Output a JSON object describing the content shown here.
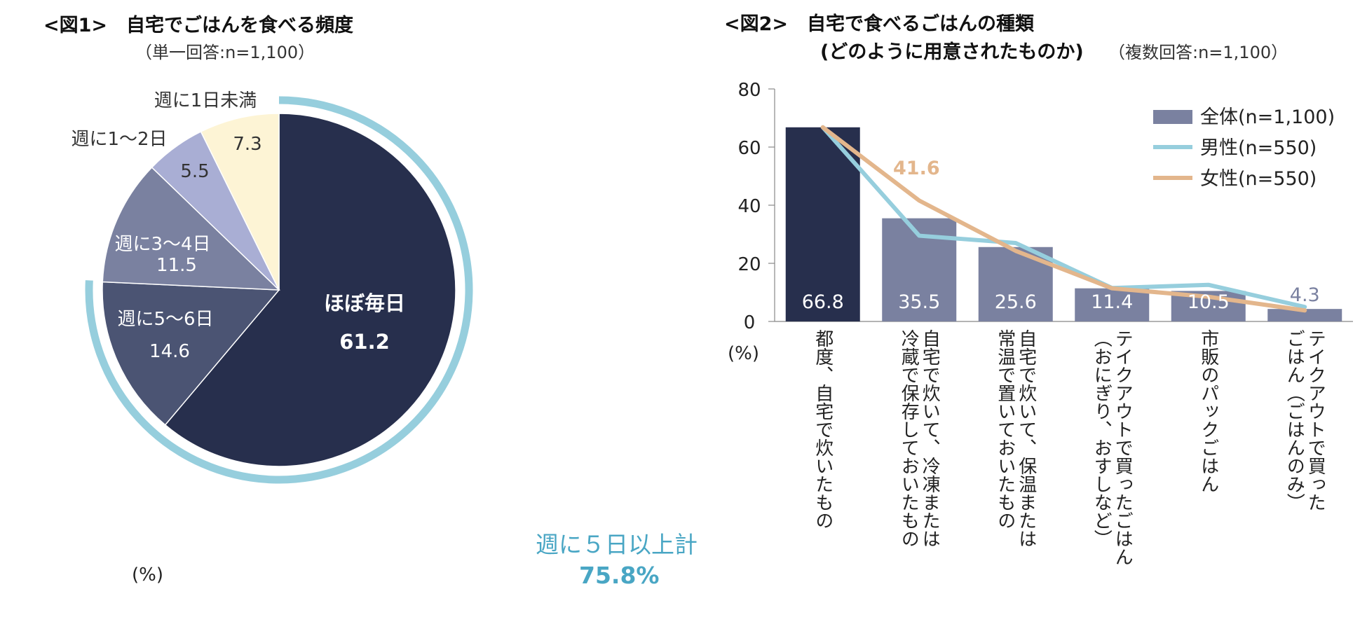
{
  "chart_data": [
    {
      "type": "pie",
      "title": "<図1>　自宅でごはんを食べる頻度",
      "subtitle": "（単一回答:n=1,100）",
      "unit_label": "(%)",
      "slices": [
        {
          "label": "ほぼ毎日",
          "value": 61.2,
          "value_text": "61.2",
          "color": "#272f4d",
          "text_color": "#ffffff"
        },
        {
          "label": "週に5～6日",
          "value": 14.6,
          "value_text": "14.6",
          "color": "#4b5473",
          "text_color": "#ffffff"
        },
        {
          "label": "週に3～4日",
          "value": 11.5,
          "value_text": "11.5",
          "color": "#7a81a0",
          "text_color": "#ffffff"
        },
        {
          "label": "週に1～2日",
          "value": 5.5,
          "value_text": "5.5",
          "color": "#a9aed4",
          "text_color": "#333333"
        },
        {
          "label": "週に1日未満",
          "value": 7.3,
          "value_text": "7.3",
          "color": "#fdf4d5",
          "text_color": "#333333"
        }
      ],
      "highlight_arc": {
        "label": "週に５日以上計",
        "value_text": "75.8%",
        "value": 75.8,
        "color": "#96cedd",
        "text_color": "#49a6c4"
      }
    },
    {
      "type": "bar",
      "title_line1": "<図2>　自宅で食べるごはんの種類",
      "title_line2": "(どのように用意されたものか)",
      "subtitle": "（複数回答:n=1,100）",
      "ylabel": "(%)",
      "ylim": [
        0,
        80
      ],
      "yticks": [
        0,
        20,
        40,
        60,
        80
      ],
      "categories": [
        "都度、自宅で炊いたもの",
        "自宅で炊いて、冷凍または冷蔵で保存しておいたもの",
        "自宅で炊いて、保温または常温で置いておいたもの",
        "テイクアウトで買ったごはん（おにぎり、おすしなど）",
        "市販のパックごはん",
        "テイクアウトで買ったごはん（ごはんのみ）"
      ],
      "category_lines": [
        [
          "都度、自宅で炊いたもの"
        ],
        [
          "自宅で炊いて、冷凍または",
          "冷蔵で保存しておいたもの"
        ],
        [
          "自宅で炊いて、保温または",
          "常温で置いておいたもの"
        ],
        [
          "テイクアウトで買ったごはん",
          "（おにぎり、おすしなど）"
        ],
        [
          "市販のパックごはん"
        ],
        [
          "テイクアウトで買った",
          "ごはん（ごはんのみ）"
        ]
      ],
      "series": [
        {
          "name": "全体(n=1,100)",
          "kind": "bar",
          "values": [
            66.8,
            35.5,
            25.6,
            11.4,
            10.5,
            4.3
          ],
          "labels": [
            "66.8",
            "35.5",
            "25.6",
            "11.4",
            "10.5",
            "4.3"
          ]
        },
        {
          "name": "男性(n=550)",
          "kind": "line",
          "values": [
            66.8,
            29.5,
            27.0,
            11.5,
            12.6,
            5.0
          ]
        },
        {
          "name": "女性(n=550)",
          "kind": "line",
          "values": [
            66.8,
            41.6,
            24.3,
            11.4,
            8.5,
            3.8
          ]
        }
      ],
      "highlight_label": {
        "series": "女性(n=550)",
        "index": 1,
        "text": "41.6"
      },
      "colors": {
        "bar_first": "#272f4d",
        "bar_rest": "#7a81a0",
        "male_line": "#96cedd",
        "female_line": "#e3b68c",
        "bar_label_outside": "#7a81a0"
      }
    }
  ]
}
